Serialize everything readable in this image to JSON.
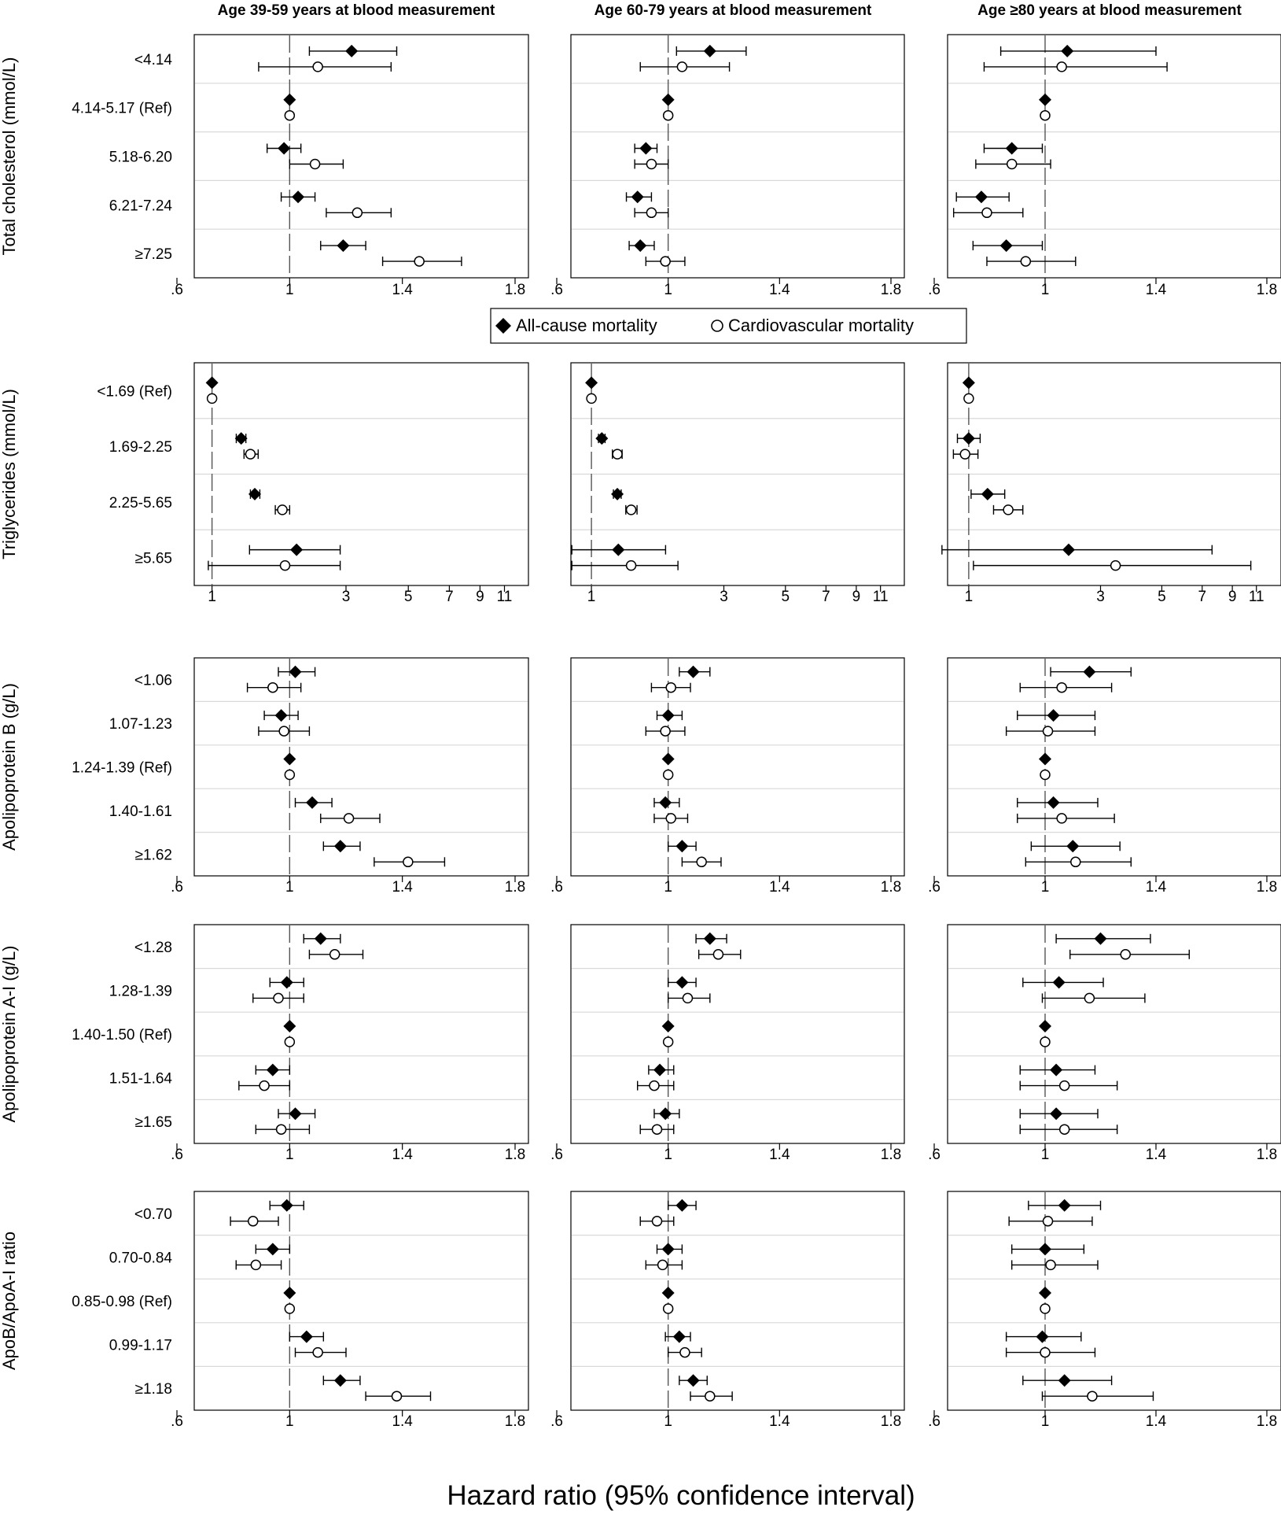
{
  "columns": [
    "Age 39-59 years at blood measurement",
    "Age 60-79 years at blood measurement",
    "Age ≥80 years at blood measurement"
  ],
  "legend": {
    "items": [
      {
        "label": "All-cause mortality",
        "marker": "filled-diamond"
      },
      {
        "label": "Cardiovascular mortality",
        "marker": "hollow-circle"
      }
    ]
  },
  "xlabel": "Hazard ratio (95% confidence interval)",
  "colors": {
    "ink": "#000000",
    "refline": "#555555",
    "separator": "#d9d9d9",
    "background": "#ffffff"
  },
  "chart_data": [
    {
      "type": "forest",
      "ylabel": "Total cholesterol (mmol/L)",
      "scale": "linear",
      "xlim": [
        0.6,
        1.8
      ],
      "xticks": [
        0.6,
        1.0,
        1.4,
        1.8
      ],
      "xtick_labels": [
        ".6",
        "1",
        "1.4",
        "1.8"
      ],
      "categories": [
        "<4.14",
        "4.14-5.17 (Ref)",
        "5.18-6.20",
        "6.21-7.24",
        "≥7.25"
      ],
      "panels": [
        {
          "age_group": "Age 39-59 years at blood measurement",
          "series": [
            {
              "name": "All-cause mortality",
              "hr": [
                1.22,
                1.0,
                0.98,
                1.03,
                1.19
              ],
              "lo": [
                1.07,
                1.0,
                0.92,
                0.97,
                1.11
              ],
              "hi": [
                1.38,
                1.0,
                1.04,
                1.09,
                1.27
              ]
            },
            {
              "name": "Cardiovascular mortality",
              "hr": [
                1.1,
                1.0,
                1.09,
                1.24,
                1.46
              ],
              "lo": [
                0.89,
                1.0,
                1.0,
                1.13,
                1.33
              ],
              "hi": [
                1.36,
                1.0,
                1.19,
                1.36,
                1.61
              ]
            }
          ]
        },
        {
          "age_group": "Age 60-79 years at blood measurement",
          "series": [
            {
              "name": "All-cause mortality",
              "hr": [
                1.15,
                1.0,
                0.92,
                0.89,
                0.9
              ],
              "lo": [
                1.03,
                1.0,
                0.88,
                0.85,
                0.86
              ],
              "hi": [
                1.28,
                1.0,
                0.96,
                0.94,
                0.95
              ]
            },
            {
              "name": "Cardiovascular mortality",
              "hr": [
                1.05,
                1.0,
                0.94,
                0.94,
                0.99
              ],
              "lo": [
                0.9,
                1.0,
                0.88,
                0.88,
                0.92
              ],
              "hi": [
                1.22,
                1.0,
                1.0,
                1.0,
                1.06
              ]
            }
          ]
        },
        {
          "age_group": "Age ≥80 years at blood measurement",
          "series": [
            {
              "name": "All-cause mortality",
              "hr": [
                1.08,
                1.0,
                0.88,
                0.77,
                0.86
              ],
              "lo": [
                0.84,
                1.0,
                0.78,
                0.68,
                0.74
              ],
              "hi": [
                1.4,
                1.0,
                0.99,
                0.87,
                0.99
              ]
            },
            {
              "name": "Cardiovascular mortality",
              "hr": [
                1.06,
                1.0,
                0.88,
                0.79,
                0.93
              ],
              "lo": [
                0.78,
                1.0,
                0.75,
                0.67,
                0.79
              ],
              "hi": [
                1.44,
                1.0,
                1.02,
                0.92,
                1.11
              ]
            }
          ]
        }
      ]
    },
    {
      "type": "forest",
      "ylabel": "Triglycerides (mmol/L)",
      "scale": "log",
      "xlim": [
        0.75,
        12
      ],
      "xticks": [
        1,
        3,
        5,
        7,
        9,
        11
      ],
      "xtick_labels": [
        "1",
        "3",
        "5",
        "7",
        "9",
        "11"
      ],
      "categories": [
        "<1.69 (Ref)",
        "1.69-2.25",
        "2.25-5.65",
        "≥5.65"
      ],
      "panels": [
        {
          "age_group": "Age 39-59 years at blood measurement",
          "series": [
            {
              "name": "All-cause mortality",
              "hr": [
                1.0,
                1.27,
                1.42,
                2.0
              ],
              "lo": [
                1.0,
                1.22,
                1.37,
                1.36
              ],
              "hi": [
                1.0,
                1.32,
                1.48,
                2.86
              ]
            },
            {
              "name": "Cardiovascular mortality",
              "hr": [
                1.0,
                1.37,
                1.78,
                1.82
              ],
              "lo": [
                1.0,
                1.3,
                1.68,
                0.97
              ],
              "hi": [
                1.0,
                1.46,
                1.89,
                2.86
              ]
            }
          ]
        },
        {
          "age_group": "Age 60-79 years at blood measurement",
          "series": [
            {
              "name": "All-cause mortality",
              "hr": [
                1.0,
                1.09,
                1.24,
                1.25
              ],
              "lo": [
                1.0,
                1.06,
                1.2,
                0.85
              ],
              "hi": [
                1.0,
                1.12,
                1.28,
                1.85
              ]
            },
            {
              "name": "Cardiovascular mortality",
              "hr": [
                1.0,
                1.24,
                1.39,
                1.39
              ],
              "lo": [
                1.0,
                1.19,
                1.33,
                0.85
              ],
              "hi": [
                1.0,
                1.29,
                1.46,
                2.05
              ]
            }
          ]
        },
        {
          "age_group": "Age ≥80 years at blood measurement",
          "series": [
            {
              "name": "All-cause mortality",
              "hr": [
                1.0,
                1.0,
                1.17,
                2.3
              ],
              "lo": [
                1.0,
                0.91,
                1.02,
                0.8
              ],
              "hi": [
                1.0,
                1.1,
                1.35,
                7.6
              ]
            },
            {
              "name": "Cardiovascular mortality",
              "hr": [
                1.0,
                0.97,
                1.39,
                3.4
              ],
              "lo": [
                1.0,
                0.88,
                1.23,
                1.04
              ],
              "hi": [
                1.0,
                1.08,
                1.57,
                10.5
              ]
            }
          ]
        }
      ]
    },
    {
      "type": "forest",
      "ylabel": "Apolipoprotein B (g/L)",
      "scale": "linear",
      "xlim": [
        0.6,
        1.8
      ],
      "xticks": [
        0.6,
        1.0,
        1.4,
        1.8
      ],
      "xtick_labels": [
        ".6",
        "1",
        "1.4",
        "1.8"
      ],
      "categories": [
        "<1.06",
        "1.07-1.23",
        "1.24-1.39 (Ref)",
        "1.40-1.61",
        "≥1.62"
      ],
      "panels": [
        {
          "age_group": "Age 39-59 years at blood measurement",
          "series": [
            {
              "name": "All-cause mortality",
              "hr": [
                1.02,
                0.97,
                1.0,
                1.08,
                1.18
              ],
              "lo": [
                0.96,
                0.91,
                1.0,
                1.02,
                1.12
              ],
              "hi": [
                1.09,
                1.03,
                1.0,
                1.15,
                1.25
              ]
            },
            {
              "name": "Cardiovascular mortality",
              "hr": [
                0.94,
                0.98,
                1.0,
                1.21,
                1.42
              ],
              "lo": [
                0.85,
                0.89,
                1.0,
                1.11,
                1.3
              ],
              "hi": [
                1.04,
                1.07,
                1.0,
                1.32,
                1.55
              ]
            }
          ]
        },
        {
          "age_group": "Age 60-79 years at blood measurement",
          "series": [
            {
              "name": "All-cause mortality",
              "hr": [
                1.09,
                1.0,
                1.0,
                0.99,
                1.05
              ],
              "lo": [
                1.04,
                0.96,
                1.0,
                0.95,
                1.0
              ],
              "hi": [
                1.15,
                1.05,
                1.0,
                1.04,
                1.1
              ]
            },
            {
              "name": "Cardiovascular mortality",
              "hr": [
                1.01,
                0.99,
                1.0,
                1.01,
                1.12
              ],
              "lo": [
                0.94,
                0.92,
                1.0,
                0.95,
                1.05
              ],
              "hi": [
                1.08,
                1.06,
                1.0,
                1.07,
                1.19
              ]
            }
          ]
        },
        {
          "age_group": "Age ≥80 years at blood measurement",
          "series": [
            {
              "name": "All-cause mortality",
              "hr": [
                1.16,
                1.03,
                1.0,
                1.03,
                1.1
              ],
              "lo": [
                1.02,
                0.9,
                1.0,
                0.9,
                0.95
              ],
              "hi": [
                1.31,
                1.18,
                1.0,
                1.19,
                1.27
              ]
            },
            {
              "name": "Cardiovascular mortality",
              "hr": [
                1.06,
                1.01,
                1.0,
                1.06,
                1.11
              ],
              "lo": [
                0.91,
                0.86,
                1.0,
                0.9,
                0.93
              ],
              "hi": [
                1.24,
                1.18,
                1.0,
                1.25,
                1.31
              ]
            }
          ]
        }
      ]
    },
    {
      "type": "forest",
      "ylabel": "Apolipoprotein A-I (g/L)",
      "scale": "linear",
      "xlim": [
        0.6,
        1.8
      ],
      "xticks": [
        0.6,
        1.0,
        1.4,
        1.8
      ],
      "xtick_labels": [
        ".6",
        "1",
        "1.4",
        "1.8"
      ],
      "categories": [
        "<1.28",
        "1.28-1.39",
        "1.40-1.50 (Ref)",
        "1.51-1.64",
        "≥1.65"
      ],
      "panels": [
        {
          "age_group": "Age 39-59 years at blood measurement",
          "series": [
            {
              "name": "All-cause mortality",
              "hr": [
                1.11,
                0.99,
                1.0,
                0.94,
                1.02
              ],
              "lo": [
                1.05,
                0.93,
                1.0,
                0.88,
                0.96
              ],
              "hi": [
                1.18,
                1.05,
                1.0,
                1.0,
                1.09
              ]
            },
            {
              "name": "Cardiovascular mortality",
              "hr": [
                1.16,
                0.96,
                1.0,
                0.91,
                0.97
              ],
              "lo": [
                1.07,
                0.87,
                1.0,
                0.82,
                0.88
              ],
              "hi": [
                1.26,
                1.05,
                1.0,
                1.0,
                1.07
              ]
            }
          ]
        },
        {
          "age_group": "Age 60-79 years at blood measurement",
          "series": [
            {
              "name": "All-cause mortality",
              "hr": [
                1.15,
                1.05,
                1.0,
                0.97,
                0.99
              ],
              "lo": [
                1.1,
                1.0,
                1.0,
                0.93,
                0.95
              ],
              "hi": [
                1.21,
                1.1,
                1.0,
                1.02,
                1.04
              ]
            },
            {
              "name": "Cardiovascular mortality",
              "hr": [
                1.18,
                1.07,
                1.0,
                0.95,
                0.96
              ],
              "lo": [
                1.11,
                1.0,
                1.0,
                0.89,
                0.9
              ],
              "hi": [
                1.26,
                1.15,
                1.0,
                1.02,
                1.02
              ]
            }
          ]
        },
        {
          "age_group": "Age ≥80 years at blood measurement",
          "series": [
            {
              "name": "All-cause mortality",
              "hr": [
                1.2,
                1.05,
                1.0,
                1.04,
                1.04
              ],
              "lo": [
                1.04,
                0.92,
                1.0,
                0.91,
                0.91
              ],
              "hi": [
                1.38,
                1.21,
                1.0,
                1.18,
                1.19
              ]
            },
            {
              "name": "Cardiovascular mortality",
              "hr": [
                1.29,
                1.16,
                1.0,
                1.07,
                1.07
              ],
              "lo": [
                1.09,
                0.99,
                1.0,
                0.91,
                0.91
              ],
              "hi": [
                1.52,
                1.36,
                1.0,
                1.26,
                1.26
              ]
            }
          ]
        }
      ]
    },
    {
      "type": "forest",
      "ylabel": "ApoB/ApoA-I ratio",
      "scale": "linear",
      "xlim": [
        0.6,
        1.8
      ],
      "xticks": [
        0.6,
        1.0,
        1.4,
        1.8
      ],
      "xtick_labels": [
        ".6",
        "1",
        "1.4",
        "1.8"
      ],
      "categories": [
        "<0.70",
        "0.70-0.84",
        "0.85-0.98 (Ref)",
        "0.99-1.17",
        "≥1.18"
      ],
      "panels": [
        {
          "age_group": "Age 39-59 years at blood measurement",
          "series": [
            {
              "name": "All-cause mortality",
              "hr": [
                0.99,
                0.94,
                1.0,
                1.06,
                1.18
              ],
              "lo": [
                0.93,
                0.88,
                1.0,
                1.0,
                1.12
              ],
              "hi": [
                1.05,
                1.0,
                1.0,
                1.12,
                1.25
              ]
            },
            {
              "name": "Cardiovascular mortality",
              "hr": [
                0.87,
                0.88,
                1.0,
                1.1,
                1.38
              ],
              "lo": [
                0.79,
                0.81,
                1.0,
                1.02,
                1.27
              ],
              "hi": [
                0.96,
                0.97,
                1.0,
                1.2,
                1.5
              ]
            }
          ]
        },
        {
          "age_group": "Age 60-79 years at blood measurement",
          "series": [
            {
              "name": "All-cause mortality",
              "hr": [
                1.05,
                1.0,
                1.0,
                1.04,
                1.09
              ],
              "lo": [
                1.0,
                0.96,
                1.0,
                0.99,
                1.04
              ],
              "hi": [
                1.1,
                1.05,
                1.0,
                1.08,
                1.14
              ]
            },
            {
              "name": "Cardiovascular mortality",
              "hr": [
                0.96,
                0.98,
                1.0,
                1.06,
                1.15
              ],
              "lo": [
                0.9,
                0.92,
                1.0,
                1.0,
                1.08
              ],
              "hi": [
                1.02,
                1.05,
                1.0,
                1.12,
                1.23
              ]
            }
          ]
        },
        {
          "age_group": "Age ≥80 years at blood measurement",
          "series": [
            {
              "name": "All-cause mortality",
              "hr": [
                1.07,
                1.0,
                1.0,
                0.99,
                1.07
              ],
              "lo": [
                0.94,
                0.88,
                1.0,
                0.86,
                0.92
              ],
              "hi": [
                1.2,
                1.14,
                1.0,
                1.13,
                1.24
              ]
            },
            {
              "name": "Cardiovascular mortality",
              "hr": [
                1.01,
                1.02,
                1.0,
                1.0,
                1.17
              ],
              "lo": [
                0.87,
                0.88,
                1.0,
                0.86,
                0.99
              ],
              "hi": [
                1.17,
                1.19,
                1.0,
                1.18,
                1.39
              ]
            }
          ]
        }
      ]
    }
  ]
}
